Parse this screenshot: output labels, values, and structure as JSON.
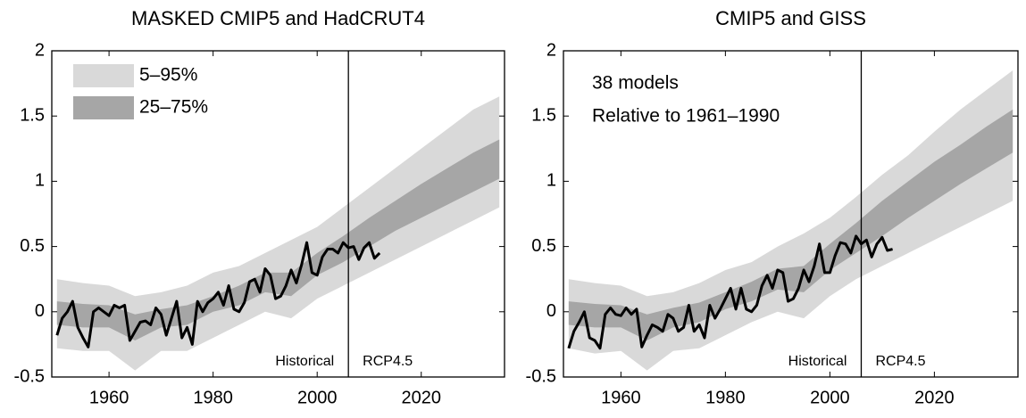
{
  "chart_data": [
    {
      "type": "band-line",
      "title": "MASKED CMIP5 and HadCRUT4",
      "xlim": [
        1949,
        2036
      ],
      "xticks": [
        1960,
        1980,
        2000,
        2020
      ],
      "ylim": [
        -0.5,
        2
      ],
      "yticks": [
        -0.5,
        0,
        0.5,
        1,
        1.5,
        2
      ],
      "x": [
        1950,
        1955,
        1960,
        1965,
        1970,
        1975,
        1980,
        1985,
        1990,
        1995,
        2000,
        2005,
        2010,
        2015,
        2020,
        2025,
        2030,
        2035
      ],
      "bands": [
        {
          "name": "5–95%",
          "color": "#d9d9d9",
          "lower": [
            -0.28,
            -0.3,
            -0.3,
            -0.45,
            -0.3,
            -0.3,
            -0.2,
            -0.1,
            0,
            -0.05,
            0.1,
            0.2,
            0.3,
            0.4,
            0.5,
            0.6,
            0.7,
            0.8
          ],
          "upper": [
            0.25,
            0.22,
            0.2,
            0.12,
            0.15,
            0.2,
            0.3,
            0.35,
            0.45,
            0.55,
            0.65,
            0.8,
            0.95,
            1.1,
            1.25,
            1.4,
            1.55,
            1.65
          ]
        },
        {
          "name": "25–75%",
          "color": "#a6a6a6",
          "lower": [
            -0.1,
            -0.12,
            -0.12,
            -0.22,
            -0.12,
            -0.1,
            0,
            0.05,
            0.15,
            0.12,
            0.28,
            0.38,
            0.5,
            0.62,
            0.72,
            0.82,
            0.92,
            1.02
          ],
          "upper": [
            0.08,
            0.06,
            0.05,
            -0.02,
            0.02,
            0.05,
            0.12,
            0.2,
            0.3,
            0.3,
            0.45,
            0.58,
            0.72,
            0.85,
            0.98,
            1.1,
            1.22,
            1.32
          ]
        }
      ],
      "series": [
        {
          "color": "#000000",
          "x": [
            1950,
            1951,
            1952,
            1953,
            1954,
            1955,
            1956,
            1957,
            1958,
            1959,
            1960,
            1961,
            1962,
            1963,
            1964,
            1965,
            1966,
            1967,
            1968,
            1969,
            1970,
            1971,
            1972,
            1973,
            1974,
            1975,
            1976,
            1977,
            1978,
            1979,
            1980,
            1981,
            1982,
            1983,
            1984,
            1985,
            1986,
            1987,
            1988,
            1989,
            1990,
            1991,
            1992,
            1993,
            1994,
            1995,
            1996,
            1997,
            1998,
            1999,
            2000,
            2001,
            2002,
            2003,
            2004,
            2005,
            2006,
            2007,
            2008,
            2009,
            2010,
            2011,
            2012
          ],
          "values": [
            -0.18,
            -0.05,
            0,
            0.08,
            -0.12,
            -0.2,
            -0.27,
            0,
            0.03,
            0,
            -0.03,
            0.05,
            0.03,
            0.05,
            -0.22,
            -0.15,
            -0.08,
            -0.07,
            -0.1,
            0.03,
            -0.02,
            -0.18,
            -0.05,
            0.08,
            -0.2,
            -0.12,
            -0.25,
            0.08,
            0,
            0.07,
            0.1,
            0.15,
            0.05,
            0.2,
            0.02,
            0,
            0.07,
            0.23,
            0.25,
            0.15,
            0.33,
            0.28,
            0.1,
            0.12,
            0.2,
            0.32,
            0.22,
            0.36,
            0.53,
            0.3,
            0.28,
            0.42,
            0.48,
            0.48,
            0.45,
            0.53,
            0.49,
            0.5,
            0.4,
            0.49,
            0.53,
            0.41,
            0.45
          ]
        }
      ],
      "divider": 2006,
      "left_label": "Historical",
      "right_label": "RCP4.5"
    },
    {
      "type": "band-line",
      "title": "CMIP5 and GISS",
      "xlim": [
        1949,
        2036
      ],
      "xticks": [
        1960,
        1980,
        2000,
        2020
      ],
      "ylim": [
        -0.5,
        2
      ],
      "yticks": [
        -0.5,
        0,
        0.5,
        1,
        1.5,
        2
      ],
      "annotations": [
        "38 models",
        "Relative to 1961–1990"
      ],
      "x": [
        1950,
        1955,
        1960,
        1965,
        1970,
        1975,
        1980,
        1985,
        1990,
        1995,
        2000,
        2005,
        2010,
        2015,
        2020,
        2025,
        2030,
        2035
      ],
      "bands": [
        {
          "color": "#d9d9d9",
          "lower": [
            -0.28,
            -0.32,
            -0.3,
            -0.45,
            -0.3,
            -0.28,
            -0.18,
            -0.08,
            0,
            -0.05,
            0.12,
            0.25,
            0.35,
            0.45,
            0.55,
            0.65,
            0.75,
            0.85
          ],
          "upper": [
            0.25,
            0.22,
            0.2,
            0.12,
            0.15,
            0.22,
            0.32,
            0.38,
            0.5,
            0.6,
            0.72,
            0.88,
            1.05,
            1.2,
            1.38,
            1.55,
            1.7,
            1.85
          ]
        },
        {
          "color": "#a6a6a6",
          "lower": [
            -0.1,
            -0.12,
            -0.12,
            -0.22,
            -0.12,
            -0.08,
            0.02,
            0.08,
            0.17,
            0.15,
            0.32,
            0.45,
            0.58,
            0.72,
            0.85,
            0.98,
            1.1,
            1.22
          ],
          "upper": [
            0.08,
            0.06,
            0.05,
            -0.02,
            0.03,
            0.07,
            0.15,
            0.23,
            0.33,
            0.35,
            0.52,
            0.68,
            0.85,
            1.0,
            1.15,
            1.28,
            1.42,
            1.55
          ]
        }
      ],
      "series": [
        {
          "color": "#000000",
          "x": [
            1950,
            1951,
            1952,
            1953,
            1954,
            1955,
            1956,
            1957,
            1958,
            1959,
            1960,
            1961,
            1962,
            1963,
            1964,
            1965,
            1966,
            1967,
            1968,
            1969,
            1970,
            1971,
            1972,
            1973,
            1974,
            1975,
            1976,
            1977,
            1978,
            1979,
            1980,
            1981,
            1982,
            1983,
            1984,
            1985,
            1986,
            1987,
            1988,
            1989,
            1990,
            1991,
            1992,
            1993,
            1994,
            1995,
            1996,
            1997,
            1998,
            1999,
            2000,
            2001,
            2002,
            2003,
            2004,
            2005,
            2006,
            2007,
            2008,
            2009,
            2010,
            2011,
            2012
          ],
          "values": [
            -0.28,
            -0.15,
            -0.08,
            0,
            -0.2,
            -0.22,
            -0.28,
            -0.02,
            0.03,
            -0.02,
            -0.03,
            0.03,
            -0.02,
            0.02,
            -0.27,
            -0.18,
            -0.1,
            -0.12,
            -0.15,
            -0.02,
            -0.05,
            -0.15,
            -0.12,
            0.05,
            -0.15,
            -0.1,
            -0.2,
            0.05,
            -0.05,
            0.02,
            0.1,
            0.18,
            0.02,
            0.18,
            0.02,
            0,
            0.05,
            0.2,
            0.28,
            0.18,
            0.32,
            0.3,
            0.08,
            0.1,
            0.18,
            0.32,
            0.23,
            0.35,
            0.52,
            0.3,
            0.3,
            0.43,
            0.53,
            0.52,
            0.45,
            0.58,
            0.52,
            0.55,
            0.42,
            0.52,
            0.57,
            0.47,
            0.48
          ]
        }
      ],
      "divider": 2006,
      "left_label": "Historical",
      "right_label": "RCP4.5"
    }
  ]
}
